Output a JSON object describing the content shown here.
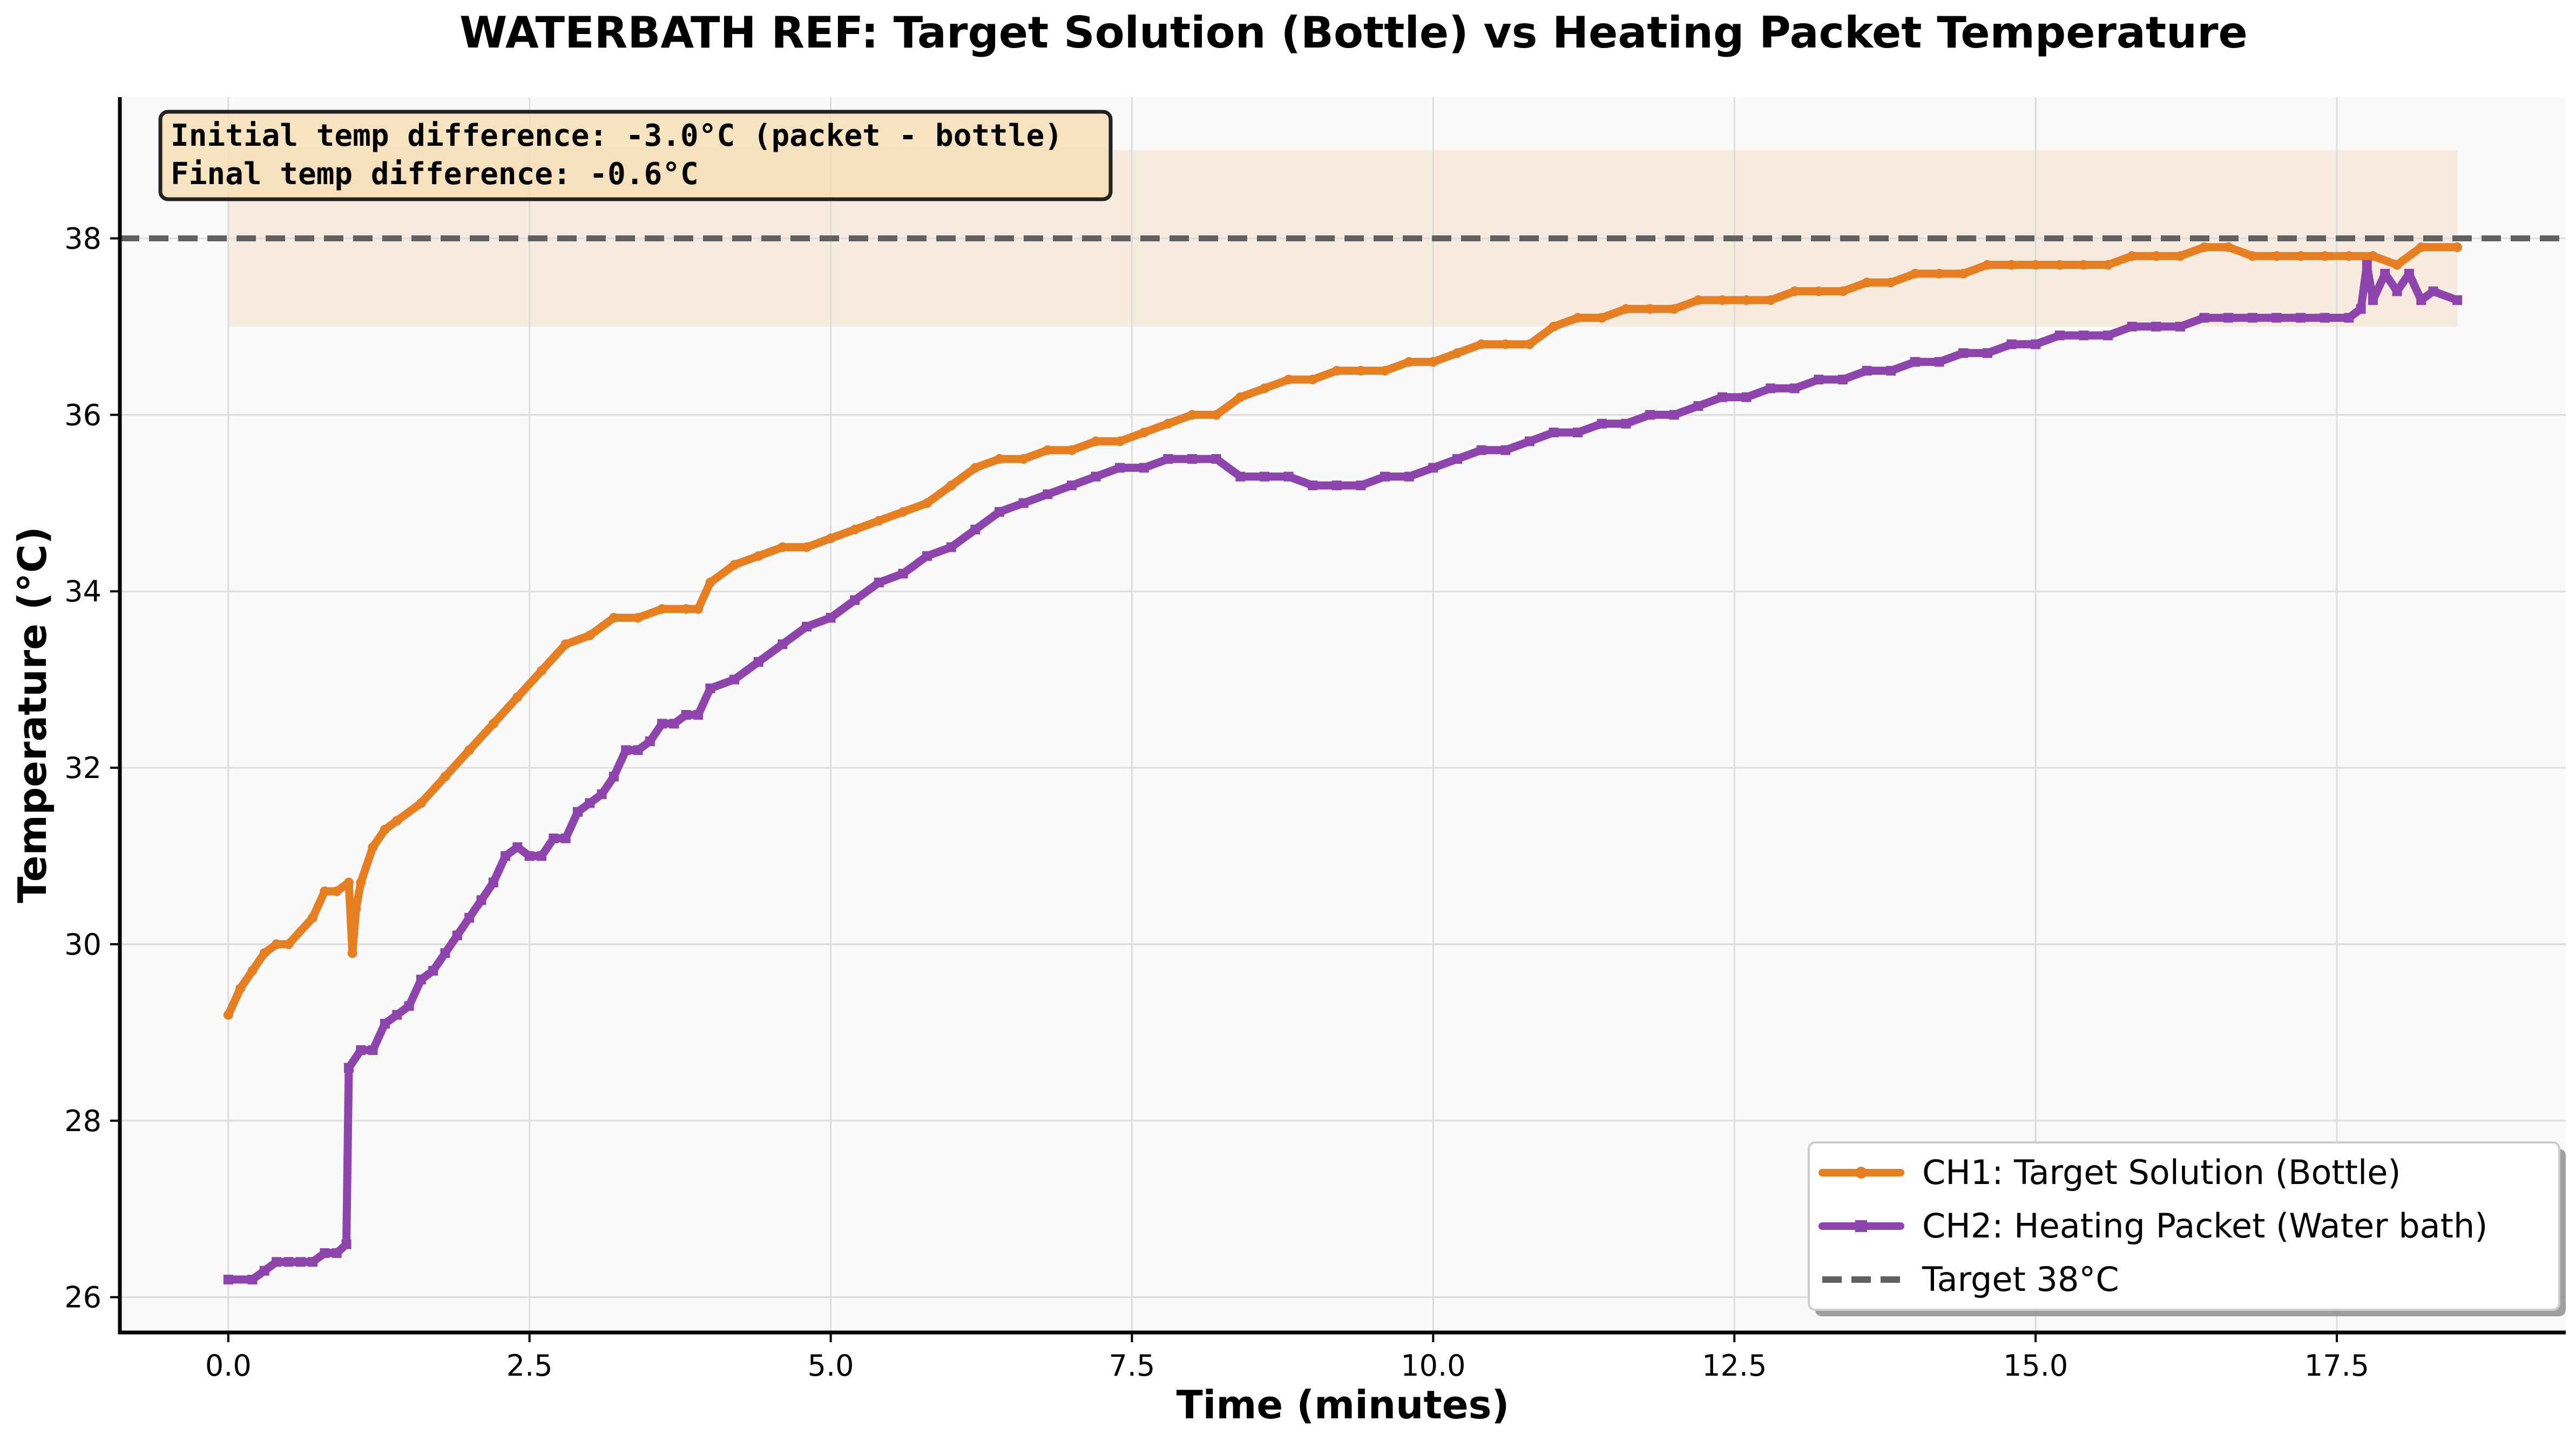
{
  "chart_data": {
    "type": "line",
    "title": "WATERBATH REF: Target Solution (Bottle) vs Heating Packet Temperature",
    "xlabel": "Time (minutes)",
    "ylabel": "Temperature (°C)",
    "xlim": [
      -0.9,
      19.4
    ],
    "ylim": [
      25.6,
      39.6
    ],
    "xticks": [
      0.0,
      2.5,
      5.0,
      7.5,
      10.0,
      12.5,
      15.0,
      17.5
    ],
    "xtick_labels": [
      "0.0",
      "2.5",
      "5.0",
      "7.5",
      "10.0",
      "12.5",
      "15.0",
      "17.5"
    ],
    "yticks": [
      26,
      28,
      30,
      32,
      34,
      36,
      38
    ],
    "ytick_labels": [
      "26",
      "28",
      "30",
      "32",
      "34",
      "36",
      "38"
    ],
    "grid": true,
    "legend_position": "bottom-right",
    "target_line": {
      "y": 38,
      "label": "Target 38°C",
      "color": "#616161",
      "style": "dashed"
    },
    "target_band": {
      "x": [
        0.0,
        18.5
      ],
      "y": [
        37.0,
        39.0
      ],
      "color": "#f5dfc8"
    },
    "annotation": {
      "lines": [
        "Initial temp difference: -3.0°C (packet - bottle)",
        "Final temp difference: -0.6°C"
      ],
      "position": "top-left"
    },
    "series": [
      {
        "name": "CH1: Target Solution (Bottle)",
        "color": "#e67e22",
        "marker": "circle",
        "x": [
          0.0,
          0.1,
          0.2,
          0.3,
          0.4,
          0.5,
          0.7,
          0.8,
          0.9,
          1.0,
          1.03,
          1.06,
          1.1,
          1.2,
          1.3,
          1.4,
          1.6,
          1.8,
          2.0,
          2.2,
          2.4,
          2.6,
          2.8,
          3.0,
          3.2,
          3.4,
          3.6,
          3.8,
          3.9,
          4.0,
          4.2,
          4.4,
          4.6,
          4.8,
          5.0,
          5.2,
          5.4,
          5.6,
          5.8,
          6.0,
          6.2,
          6.4,
          6.6,
          6.8,
          7.0,
          7.2,
          7.4,
          7.6,
          7.8,
          8.0,
          8.2,
          8.4,
          8.6,
          8.8,
          9.0,
          9.2,
          9.4,
          9.6,
          9.8,
          10.0,
          10.2,
          10.4,
          10.6,
          10.8,
          11.0,
          11.2,
          11.4,
          11.6,
          11.8,
          12.0,
          12.2,
          12.4,
          12.6,
          12.8,
          13.0,
          13.2,
          13.4,
          13.6,
          13.8,
          14.0,
          14.2,
          14.4,
          14.6,
          14.8,
          15.0,
          15.2,
          15.4,
          15.6,
          15.8,
          16.0,
          16.2,
          16.4,
          16.6,
          16.8,
          17.0,
          17.2,
          17.4,
          17.6,
          17.8,
          18.0,
          18.2,
          18.5
        ],
        "y": [
          29.2,
          29.5,
          29.7,
          29.9,
          30.0,
          30.0,
          30.3,
          30.6,
          30.6,
          30.7,
          29.9,
          30.4,
          30.7,
          31.1,
          31.3,
          31.4,
          31.6,
          31.9,
          32.2,
          32.5,
          32.8,
          33.1,
          33.4,
          33.5,
          33.7,
          33.7,
          33.8,
          33.8,
          33.8,
          34.1,
          34.3,
          34.4,
          34.5,
          34.5,
          34.6,
          34.7,
          34.8,
          34.9,
          35.0,
          35.2,
          35.4,
          35.5,
          35.5,
          35.6,
          35.6,
          35.7,
          35.7,
          35.8,
          35.9,
          36.0,
          36.0,
          36.2,
          36.3,
          36.4,
          36.4,
          36.5,
          36.5,
          36.5,
          36.6,
          36.6,
          36.7,
          36.8,
          36.8,
          36.8,
          37.0,
          37.1,
          37.1,
          37.2,
          37.2,
          37.2,
          37.3,
          37.3,
          37.3,
          37.3,
          37.4,
          37.4,
          37.4,
          37.5,
          37.5,
          37.6,
          37.6,
          37.6,
          37.7,
          37.7,
          37.7,
          37.7,
          37.7,
          37.7,
          37.8,
          37.8,
          37.8,
          37.9,
          37.9,
          37.8,
          37.8,
          37.8,
          37.8,
          37.8,
          37.8,
          37.7,
          37.9,
          37.9
        ]
      },
      {
        "name": "CH2: Heating Packet (Water bath)",
        "color": "#8e44ad",
        "marker": "square",
        "x": [
          0.0,
          0.2,
          0.3,
          0.4,
          0.5,
          0.6,
          0.7,
          0.8,
          0.9,
          0.98,
          1.0,
          1.1,
          1.2,
          1.3,
          1.4,
          1.5,
          1.6,
          1.7,
          1.8,
          1.9,
          2.0,
          2.1,
          2.2,
          2.3,
          2.4,
          2.5,
          2.6,
          2.7,
          2.8,
          2.9,
          3.0,
          3.1,
          3.2,
          3.3,
          3.4,
          3.5,
          3.6,
          3.7,
          3.8,
          3.9,
          4.0,
          4.2,
          4.4,
          4.6,
          4.8,
          5.0,
          5.2,
          5.4,
          5.6,
          5.8,
          6.0,
          6.2,
          6.4,
          6.6,
          6.8,
          7.0,
          7.2,
          7.4,
          7.6,
          7.8,
          8.0,
          8.2,
          8.4,
          8.6,
          8.8,
          9.0,
          9.2,
          9.4,
          9.6,
          9.8,
          10.0,
          10.2,
          10.4,
          10.6,
          10.8,
          11.0,
          11.2,
          11.4,
          11.6,
          11.8,
          12.0,
          12.2,
          12.4,
          12.6,
          12.8,
          13.0,
          13.2,
          13.4,
          13.6,
          13.8,
          14.0,
          14.2,
          14.4,
          14.6,
          14.8,
          15.0,
          15.2,
          15.4,
          15.6,
          15.8,
          16.0,
          16.2,
          16.4,
          16.6,
          16.8,
          17.0,
          17.2,
          17.4,
          17.6,
          17.7,
          17.75,
          17.8,
          17.9,
          18.0,
          18.1,
          18.2,
          18.3,
          18.5
        ],
        "y": [
          26.2,
          26.2,
          26.3,
          26.4,
          26.4,
          26.4,
          26.4,
          26.5,
          26.5,
          26.6,
          28.6,
          28.8,
          28.8,
          29.1,
          29.2,
          29.3,
          29.6,
          29.7,
          29.9,
          30.1,
          30.3,
          30.5,
          30.7,
          31.0,
          31.1,
          31.0,
          31.0,
          31.2,
          31.2,
          31.5,
          31.6,
          31.7,
          31.9,
          32.2,
          32.2,
          32.3,
          32.5,
          32.5,
          32.6,
          32.6,
          32.9,
          33.0,
          33.2,
          33.4,
          33.6,
          33.7,
          33.9,
          34.1,
          34.2,
          34.4,
          34.5,
          34.7,
          34.9,
          35.0,
          35.1,
          35.2,
          35.3,
          35.4,
          35.4,
          35.5,
          35.5,
          35.5,
          35.3,
          35.3,
          35.3,
          35.2,
          35.2,
          35.2,
          35.3,
          35.3,
          35.4,
          35.5,
          35.6,
          35.6,
          35.7,
          35.8,
          35.8,
          35.9,
          35.9,
          36.0,
          36.0,
          36.1,
          36.2,
          36.2,
          36.3,
          36.3,
          36.4,
          36.4,
          36.5,
          36.5,
          36.6,
          36.6,
          36.7,
          36.7,
          36.8,
          36.8,
          36.9,
          36.9,
          36.9,
          37.0,
          37.0,
          37.0,
          37.1,
          37.1,
          37.1,
          37.1,
          37.1,
          37.1,
          37.1,
          37.2,
          37.7,
          37.3,
          37.6,
          37.4,
          37.6,
          37.3,
          37.4,
          37.3
        ]
      }
    ]
  }
}
